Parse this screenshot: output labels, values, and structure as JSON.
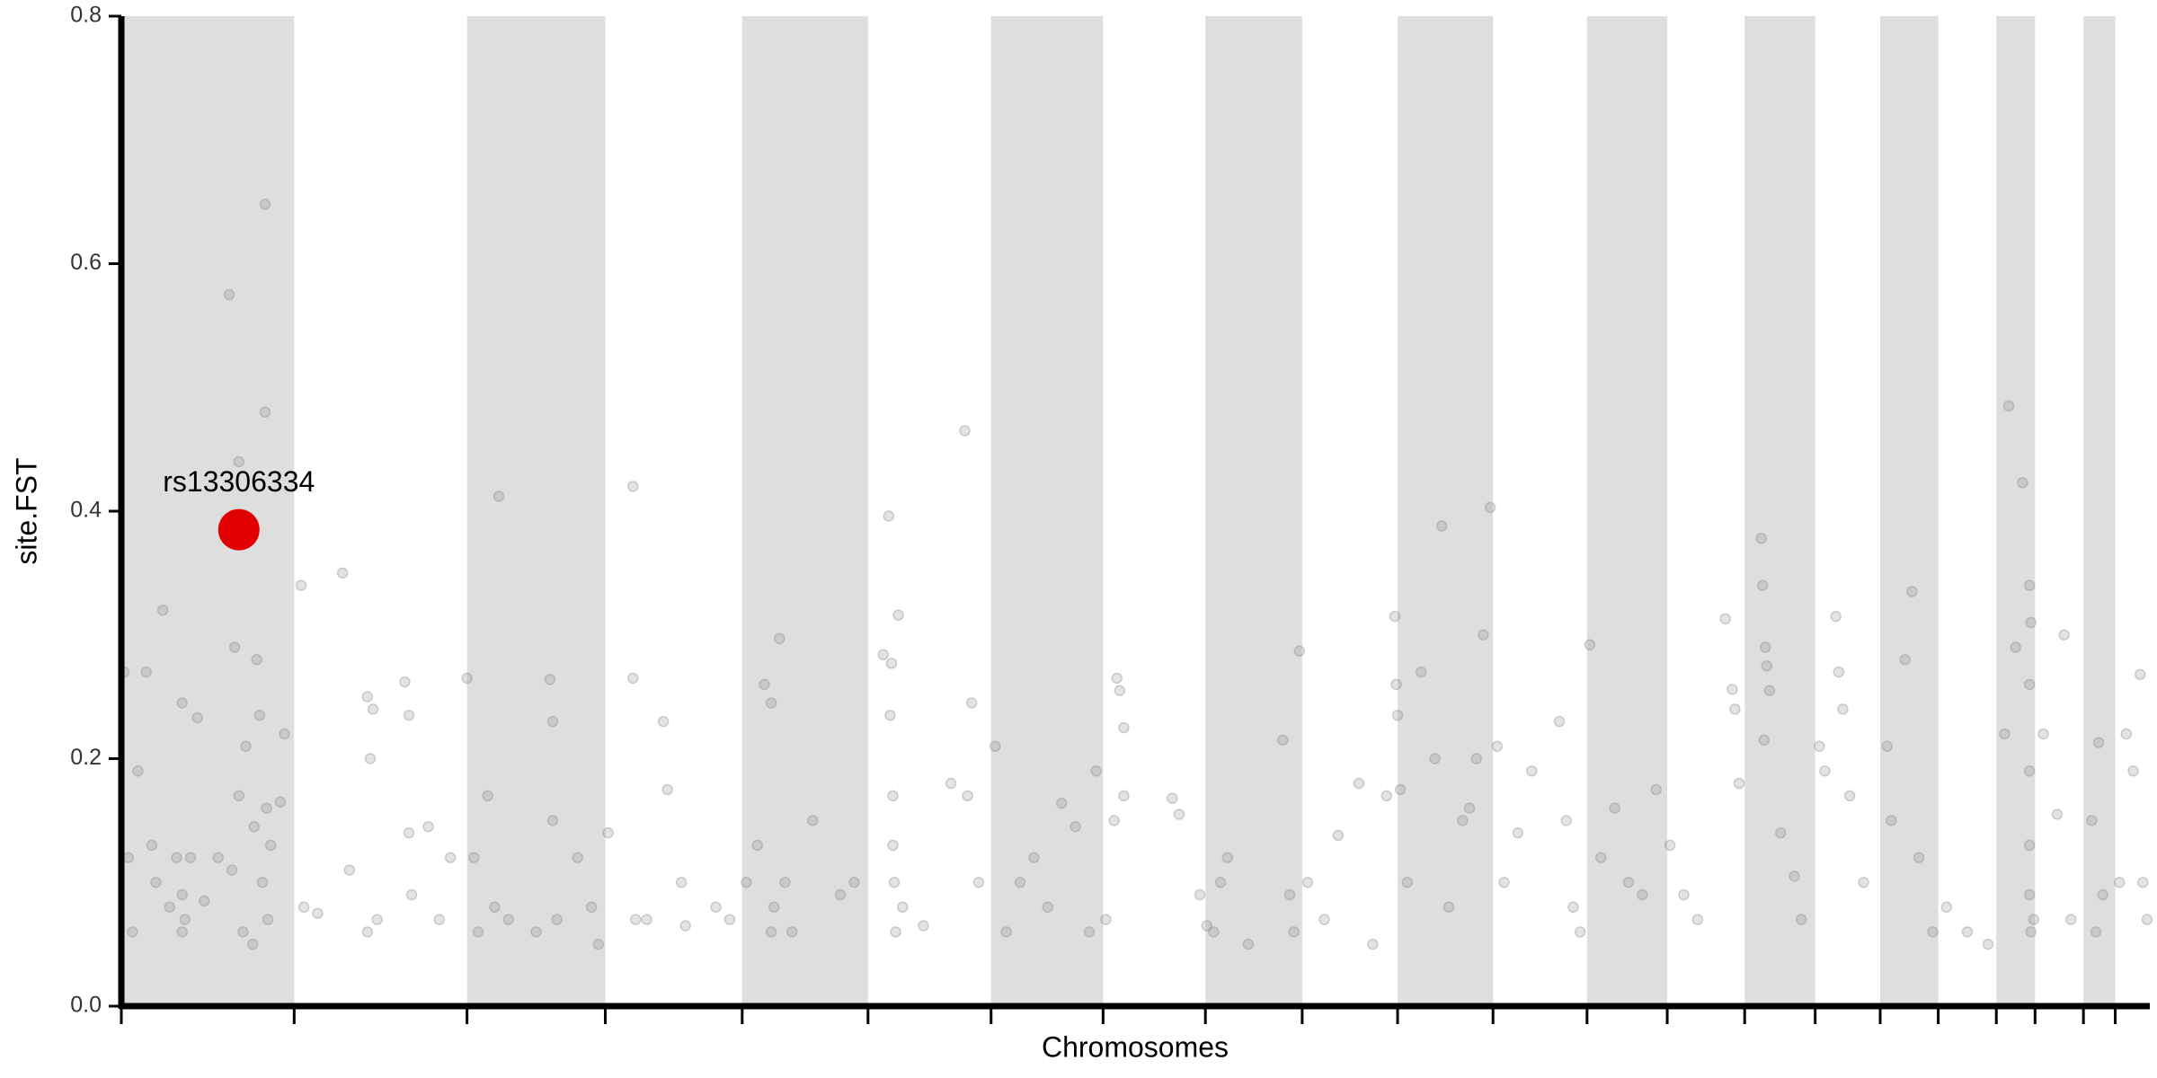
{
  "chart_data": {
    "type": "scatter",
    "x_label": "Chromosomes",
    "y_label": "site.FST",
    "xlim": [
      0,
      1467
    ],
    "ylim": [
      0,
      0.8
    ],
    "xticks": [
      0,
      125,
      250,
      350,
      449,
      540,
      629,
      710,
      784,
      854,
      923,
      992,
      1060,
      1118,
      1174,
      1225,
      1272,
      1314,
      1356,
      1384,
      1419,
      1442
    ],
    "yticks": [
      {
        "value": 0,
        "label": "0.0"
      },
      0.2,
      0.4,
      0.6,
      0.8
    ],
    "color": "#808080",
    "x": [
      2,
      5,
      8,
      12,
      18,
      22,
      25,
      30,
      35,
      40,
      44,
      46,
      50,
      55,
      60,
      78,
      80,
      82,
      85,
      88,
      95,
      98,
      100,
      102,
      104,
      104,
      105,
      106,
      108,
      115,
      118,
      85,
      90,
      96,
      44,
      44,
      70,
      132,
      142,
      130,
      160,
      165,
      178,
      180,
      182,
      185,
      178,
      205,
      208,
      208,
      210,
      222,
      230,
      238,
      250,
      255,
      258,
      265,
      270,
      273,
      280,
      300,
      310,
      312,
      312,
      315,
      330,
      340,
      345,
      352,
      370,
      370,
      372,
      380,
      392,
      395,
      405,
      408,
      430,
      440,
      452,
      460,
      465,
      470,
      472,
      476,
      480,
      485,
      470,
      500,
      520,
      530,
      551,
      555,
      557,
      558,
      559,
      560,
      562,
      558,
      556,
      565,
      580,
      600,
      610,
      615,
      612,
      620,
      632,
      640,
      650,
      660,
      670,
      680,
      690,
      700,
      705,
      712,
      718,
      720,
      722,
      725,
      725,
      760,
      765,
      780,
      785,
      790,
      795,
      800,
      815,
      840,
      845,
      848,
      852,
      858,
      870,
      880,
      895,
      905,
      915,
      921,
      922,
      923,
      925,
      930,
      940,
      950,
      955,
      960,
      970,
      975,
      980,
      985,
      990,
      995,
      1000,
      1010,
      1020,
      1040,
      1045,
      1050,
      1055,
      1062,
      1070,
      1080,
      1090,
      1100,
      1110,
      1120,
      1130,
      1140,
      1160,
      1165,
      1167,
      1170,
      1186,
      1187,
      1189,
      1190,
      1192,
      1188,
      1200,
      1210,
      1215,
      1228,
      1232,
      1240,
      1242,
      1245,
      1250,
      1260,
      1277,
      1280,
      1290,
      1295,
      1300,
      1310,
      1320,
      1335,
      1350,
      1362,
      1365,
      1370,
      1375,
      1380,
      1381,
      1380,
      1380,
      1380,
      1380,
      1381,
      1383,
      1390,
      1400,
      1405,
      1410,
      1425,
      1430,
      1433,
      1428,
      1445,
      1450,
      1455,
      1460,
      1462,
      1465
    ],
    "values": [
      0.27,
      0.12,
      0.06,
      0.19,
      0.27,
      0.13,
      0.1,
      0.32,
      0.08,
      0.12,
      0.245,
      0.07,
      0.12,
      0.233,
      0.085,
      0.575,
      0.11,
      0.29,
      0.17,
      0.06,
      0.05,
      0.28,
      0.235,
      0.1,
      0.648,
      0.48,
      0.16,
      0.07,
      0.13,
      0.165,
      0.22,
      0.44,
      0.21,
      0.145,
      0.09,
      0.06,
      0.12,
      0.08,
      0.075,
      0.34,
      0.35,
      0.11,
      0.25,
      0.2,
      0.24,
      0.07,
      0.06,
      0.262,
      0.235,
      0.14,
      0.09,
      0.145,
      0.07,
      0.12,
      0.265,
      0.12,
      0.06,
      0.17,
      0.08,
      0.412,
      0.07,
      0.06,
      0.264,
      0.23,
      0.15,
      0.07,
      0.12,
      0.08,
      0.05,
      0.14,
      0.265,
      0.42,
      0.07,
      0.07,
      0.23,
      0.175,
      0.1,
      0.065,
      0.08,
      0.07,
      0.1,
      0.13,
      0.26,
      0.245,
      0.08,
      0.297,
      0.1,
      0.06,
      0.06,
      0.15,
      0.09,
      0.1,
      0.284,
      0.396,
      0.277,
      0.17,
      0.1,
      0.06,
      0.316,
      0.13,
      0.235,
      0.08,
      0.065,
      0.18,
      0.465,
      0.245,
      0.17,
      0.1,
      0.21,
      0.06,
      0.1,
      0.12,
      0.08,
      0.164,
      0.145,
      0.06,
      0.19,
      0.07,
      0.15,
      0.265,
      0.255,
      0.225,
      0.17,
      0.168,
      0.155,
      0.09,
      0.065,
      0.06,
      0.1,
      0.12,
      0.05,
      0.215,
      0.09,
      0.06,
      0.287,
      0.1,
      0.07,
      0.138,
      0.18,
      0.05,
      0.17,
      0.315,
      0.26,
      0.235,
      0.175,
      0.1,
      0.27,
      0.2,
      0.388,
      0.08,
      0.15,
      0.16,
      0.2,
      0.3,
      0.403,
      0.21,
      0.1,
      0.14,
      0.19,
      0.23,
      0.15,
      0.08,
      0.06,
      0.292,
      0.12,
      0.16,
      0.1,
      0.09,
      0.175,
      0.13,
      0.09,
      0.07,
      0.313,
      0.256,
      0.24,
      0.18,
      0.378,
      0.34,
      0.29,
      0.275,
      0.255,
      0.215,
      0.14,
      0.105,
      0.07,
      0.21,
      0.19,
      0.315,
      0.27,
      0.24,
      0.17,
      0.1,
      0.21,
      0.15,
      0.28,
      0.335,
      0.12,
      0.06,
      0.08,
      0.06,
      0.05,
      0.22,
      0.485,
      0.29,
      0.423,
      0.34,
      0.31,
      0.26,
      0.19,
      0.13,
      0.09,
      0.06,
      0.07,
      0.22,
      0.155,
      0.3,
      0.07,
      0.15,
      0.213,
      0.09,
      0.06,
      0.1,
      0.22,
      0.19,
      0.268,
      0.1,
      0.07
    ],
    "highlight": {
      "label": "rs13306334",
      "x": 85,
      "value": 0.385,
      "color": "#e00000"
    }
  }
}
